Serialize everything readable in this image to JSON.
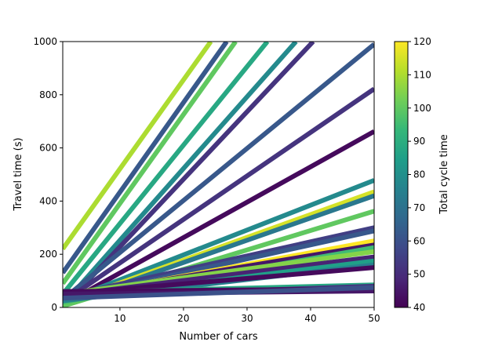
{
  "chart_data": {
    "type": "line",
    "xlabel": "Number of cars",
    "ylabel": "Travel time (s)",
    "xlim": [
      1,
      50
    ],
    "ylim": [
      0,
      1000
    ],
    "xticks": [
      10,
      20,
      30,
      40,
      50
    ],
    "yticks": [
      0,
      200,
      400,
      600,
      800,
      1000
    ],
    "colorbar": {
      "label": "Total cycle time",
      "range": [
        40,
        120
      ],
      "ticks": [
        40,
        50,
        60,
        70,
        80,
        90,
        100,
        110,
        120
      ],
      "colormap": "viridis",
      "stops": [
        "#440154",
        "#482878",
        "#3e4989",
        "#31688e",
        "#26828e",
        "#1f9e89",
        "#35b779",
        "#6ece58",
        "#b5de2b",
        "#fde725"
      ]
    },
    "series": [
      {
        "cycle_time": 110,
        "x": [
          1,
          24.3
        ],
        "y": [
          220,
          1000
        ]
      },
      {
        "cycle_time": 62,
        "x": [
          1,
          26.8
        ],
        "y": [
          130,
          1000
        ]
      },
      {
        "cycle_time": 100,
        "x": [
          1,
          28.2
        ],
        "y": [
          90,
          1000
        ]
      },
      {
        "cycle_time": 88,
        "x": [
          1,
          33.2
        ],
        "y": [
          50,
          1000
        ]
      },
      {
        "cycle_time": 78,
        "x": [
          1,
          37.7
        ],
        "y": [
          10,
          1000
        ]
      },
      {
        "cycle_time": 52,
        "x": [
          1,
          40.4
        ],
        "y": [
          0,
          1000
        ]
      },
      {
        "cycle_time": 62,
        "x": [
          1,
          50
        ],
        "y": [
          30,
          990
        ]
      },
      {
        "cycle_time": 52,
        "x": [
          1,
          50
        ],
        "y": [
          20,
          822
        ]
      },
      {
        "cycle_time": 42,
        "x": [
          1,
          50
        ],
        "y": [
          10,
          662
        ]
      },
      {
        "cycle_time": 78,
        "x": [
          1,
          50
        ],
        "y": [
          20,
          478
        ]
      },
      {
        "cycle_time": 115,
        "x": [
          1,
          50
        ],
        "y": [
          15,
          435
        ]
      },
      {
        "cycle_time": 72,
        "x": [
          1,
          50
        ],
        "y": [
          10,
          420
        ]
      },
      {
        "cycle_time": 100,
        "x": [
          1,
          50
        ],
        "y": [
          5,
          362
        ]
      },
      {
        "cycle_time": 55,
        "x": [
          1,
          50
        ],
        "y": [
          40,
          300
        ]
      },
      {
        "cycle_time": 62,
        "x": [
          1,
          50
        ],
        "y": [
          30,
          288
        ]
      },
      {
        "cycle_time": 120,
        "x": [
          1,
          50
        ],
        "y": [
          35,
          250
        ]
      },
      {
        "cycle_time": 45,
        "x": [
          1,
          50
        ],
        "y": [
          40,
          235
        ]
      },
      {
        "cycle_time": 95,
        "x": [
          1,
          50
        ],
        "y": [
          20,
          225
        ]
      },
      {
        "cycle_time": 105,
        "x": [
          1,
          50
        ],
        "y": [
          50,
          210
        ]
      },
      {
        "cycle_time": 48,
        "x": [
          1,
          50
        ],
        "y": [
          45,
          190
        ]
      },
      {
        "cycle_time": 85,
        "x": [
          1,
          50
        ],
        "y": [
          30,
          175
        ]
      },
      {
        "cycle_time": 75,
        "x": [
          1,
          50
        ],
        "y": [
          25,
          160
        ]
      },
      {
        "cycle_time": 42,
        "x": [
          1,
          50
        ],
        "y": [
          50,
          150
        ]
      },
      {
        "cycle_time": 88,
        "x": [
          1,
          50
        ],
        "y": [
          55,
          85
        ]
      },
      {
        "cycle_time": 52,
        "x": [
          1,
          50
        ],
        "y": [
          40,
          80
        ]
      },
      {
        "cycle_time": 42,
        "x": [
          1,
          50
        ],
        "y": [
          60,
          70
        ]
      },
      {
        "cycle_time": 45,
        "x": [
          1,
          50
        ],
        "y": [
          50,
          62
        ]
      },
      {
        "cycle_time": 60,
        "x": [
          1,
          50
        ],
        "y": [
          35,
          75
        ]
      }
    ]
  }
}
